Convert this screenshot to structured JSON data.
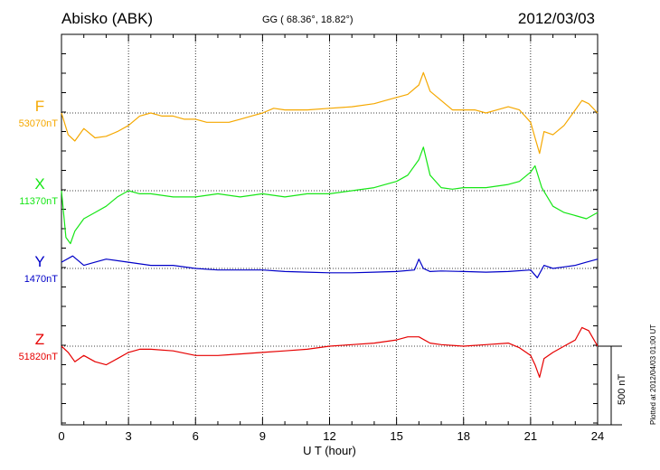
{
  "header": {
    "station": "Abisko (ABK)",
    "coords": "GG ( 68.36°,  18.82°)",
    "date": "2012/03/03"
  },
  "footnote": "Plotted at 2012/04/03 01:00 UT",
  "scale_bar": {
    "label": "500 nT",
    "value_nT": 500
  },
  "chart_data": {
    "type": "line",
    "title": "Abisko (ABK)",
    "xlabel": "U T (hour)",
    "ylabel": "",
    "xlim": [
      0,
      24
    ],
    "x_ticks": [
      0,
      3,
      6,
      9,
      12,
      15,
      18,
      21,
      24
    ],
    "grid": true,
    "nT_per_track": 350,
    "series": [
      {
        "name": "F",
        "baseline_label": "53070nT",
        "baseline_nT": 53070,
        "color": "#f5a800",
        "x": [
          0,
          0.3,
          0.6,
          1,
          1.5,
          2,
          2.5,
          3,
          3.5,
          4,
          4.5,
          5,
          5.5,
          6,
          6.5,
          7,
          7.5,
          8,
          8.5,
          9,
          9.5,
          10,
          11,
          12,
          13,
          14,
          14.5,
          15,
          15.5,
          16,
          16.2,
          16.5,
          17,
          17.5,
          18,
          18.5,
          19,
          19.5,
          20,
          20.5,
          21,
          21.2,
          21.4,
          21.6,
          22,
          22.5,
          23,
          23.3,
          23.6,
          24
        ],
        "values": [
          53070,
          53000,
          52980,
          53020,
          52990,
          52995,
          53010,
          53030,
          53060,
          53070,
          53060,
          53060,
          53050,
          53050,
          53040,
          53040,
          53040,
          53050,
          53060,
          53070,
          53085,
          53080,
          53080,
          53085,
          53090,
          53100,
          53110,
          53120,
          53130,
          53160,
          53200,
          53140,
          53110,
          53080,
          53080,
          53080,
          53070,
          53080,
          53090,
          53080,
          53040,
          52990,
          52940,
          53010,
          53000,
          53030,
          53080,
          53110,
          53100,
          53070
        ]
      },
      {
        "name": "X",
        "baseline_label": "11370nT",
        "baseline_nT": 11370,
        "color": "#16e616",
        "x": [
          0,
          0.2,
          0.4,
          0.6,
          1,
          1.5,
          2,
          2.5,
          3,
          3.5,
          4,
          5,
          6,
          7,
          8,
          9,
          10,
          11,
          12,
          13,
          14,
          14.5,
          15,
          15.5,
          16,
          16.2,
          16.5,
          17,
          17.5,
          18,
          19,
          20,
          20.5,
          21,
          21.2,
          21.5,
          22,
          22.5,
          23,
          23.5,
          24
        ],
        "values": [
          11370,
          11220,
          11200,
          11240,
          11280,
          11300,
          11320,
          11350,
          11370,
          11360,
          11360,
          11350,
          11350,
          11360,
          11350,
          11360,
          11350,
          11360,
          11360,
          11370,
          11380,
          11390,
          11400,
          11420,
          11470,
          11510,
          11420,
          11380,
          11375,
          11380,
          11380,
          11390,
          11400,
          11430,
          11450,
          11380,
          11320,
          11300,
          11290,
          11280,
          11300
        ]
      },
      {
        "name": "Y",
        "baseline_label": "1470nT",
        "baseline_nT": 1470,
        "color": "#0000c8",
        "x": [
          0,
          0.5,
          1,
          1.5,
          2,
          3,
          4,
          5,
          6,
          7,
          8,
          9,
          10,
          11,
          12,
          13,
          14,
          15,
          15.8,
          16,
          16.2,
          16.5,
          17,
          18,
          19,
          20,
          21,
          21.3,
          21.6,
          22,
          22.5,
          23,
          23.5,
          24
        ],
        "values": [
          1490,
          1510,
          1480,
          1490,
          1500,
          1490,
          1480,
          1480,
          1470,
          1465,
          1465,
          1465,
          1460,
          1458,
          1456,
          1456,
          1458,
          1460,
          1465,
          1500,
          1470,
          1460,
          1462,
          1460,
          1458,
          1460,
          1465,
          1440,
          1480,
          1470,
          1475,
          1480,
          1490,
          1500
        ]
      },
      {
        "name": "Z",
        "baseline_label": "51820nT",
        "baseline_nT": 51820,
        "color": "#e60000",
        "x": [
          0,
          0.3,
          0.6,
          1,
          1.5,
          2,
          2.5,
          3,
          3.5,
          4,
          5,
          6,
          7,
          8,
          9,
          10,
          11,
          12,
          13,
          14,
          15,
          15.5,
          16,
          16.5,
          17,
          18,
          19,
          20,
          20.5,
          21,
          21.2,
          21.4,
          21.6,
          22,
          22.5,
          23,
          23.3,
          23.6,
          24
        ],
        "values": [
          51820,
          51800,
          51770,
          51790,
          51770,
          51760,
          51780,
          51800,
          51810,
          51810,
          51805,
          51790,
          51790,
          51795,
          51800,
          51805,
          51810,
          51820,
          51825,
          51830,
          51840,
          51850,
          51850,
          51830,
          51825,
          51820,
          51825,
          51830,
          51815,
          51790,
          51760,
          51720,
          51780,
          51800,
          51820,
          51840,
          51880,
          51870,
          51820
        ]
      }
    ]
  }
}
